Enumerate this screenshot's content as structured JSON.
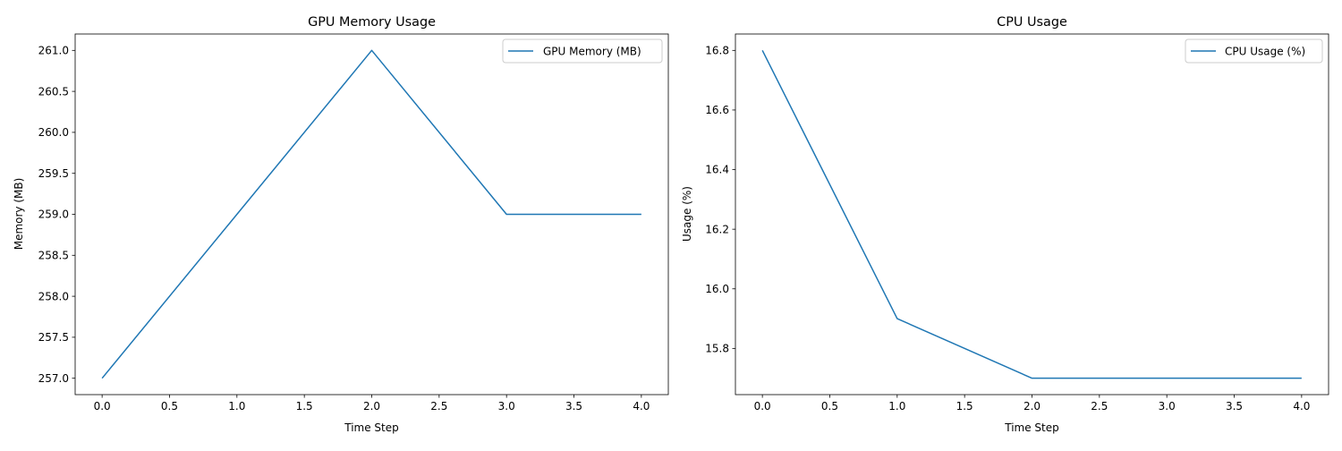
{
  "chart_data": [
    {
      "type": "line",
      "title": "GPU Memory Usage",
      "xlabel": "Time Step",
      "ylabel": "Memory (MB)",
      "x": [
        0,
        1,
        2,
        3,
        4
      ],
      "series": [
        {
          "name": "GPU Memory (MB)",
          "values": [
            257,
            259,
            261,
            259,
            259
          ],
          "color": "#1f77b4"
        }
      ],
      "xticks": [
        0.0,
        0.5,
        1.0,
        1.5,
        2.0,
        2.5,
        3.0,
        3.5,
        4.0
      ],
      "xtick_labels": [
        "0.0",
        "0.5",
        "1.0",
        "1.5",
        "2.0",
        "2.5",
        "3.0",
        "3.5",
        "4.0"
      ],
      "yticks": [
        257.0,
        257.5,
        258.0,
        258.5,
        259.0,
        259.5,
        260.0,
        260.5,
        261.0
      ],
      "ytick_labels": [
        "257.0",
        "257.5",
        "258.0",
        "258.5",
        "259.0",
        "259.5",
        "260.0",
        "260.5",
        "261.0"
      ],
      "xlim": [
        -0.2,
        4.2
      ],
      "ylim": [
        256.8,
        261.2
      ],
      "grid": false,
      "legend_position": "top-right"
    },
    {
      "type": "line",
      "title": "CPU Usage",
      "xlabel": "Time Step",
      "ylabel": "Usage (%)",
      "x": [
        0,
        1,
        2,
        3,
        4
      ],
      "series": [
        {
          "name": "CPU Usage (%)",
          "values": [
            16.8,
            15.9,
            15.7,
            15.7,
            15.7
          ],
          "color": "#1f77b4"
        }
      ],
      "xticks": [
        0.0,
        0.5,
        1.0,
        1.5,
        2.0,
        2.5,
        3.0,
        3.5,
        4.0
      ],
      "xtick_labels": [
        "0.0",
        "0.5",
        "1.0",
        "1.5",
        "2.0",
        "2.5",
        "3.0",
        "3.5",
        "4.0"
      ],
      "yticks": [
        15.8,
        16.0,
        16.2,
        16.4,
        16.6,
        16.8
      ],
      "ytick_labels": [
        "15.8",
        "16.0",
        "16.2",
        "16.4",
        "16.6",
        "16.8"
      ],
      "xlim": [
        -0.2,
        4.2
      ],
      "ylim": [
        15.645,
        16.855
      ],
      "grid": false,
      "legend_position": "top-right"
    }
  ]
}
